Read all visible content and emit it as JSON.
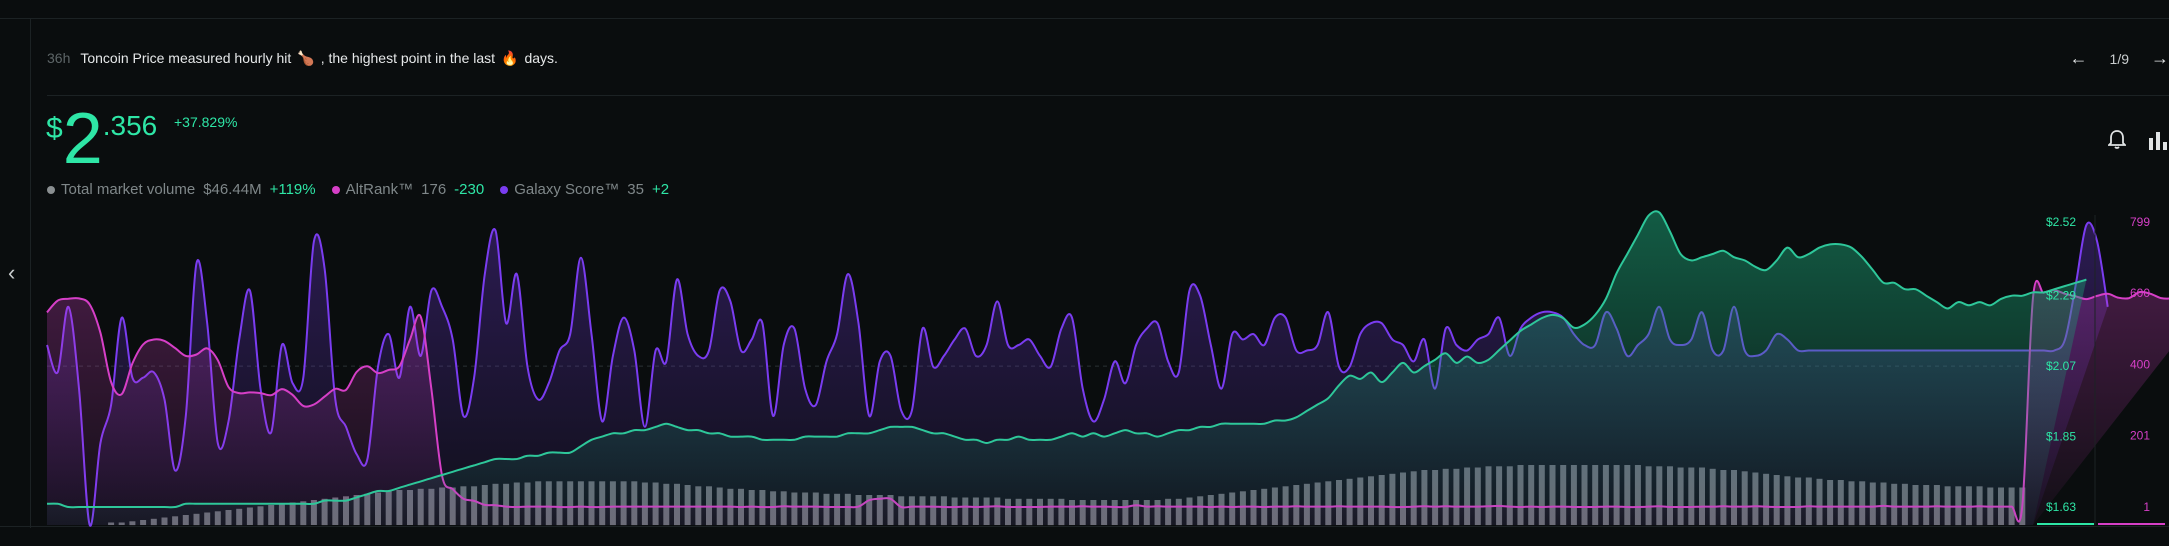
{
  "header": {
    "age": "36h",
    "text_before": "Toncoin Price measured hourly hit",
    "emoji1": "🍗",
    "text_middle": ", the highest point in the last",
    "emoji2": "🔥",
    "text_after": "days."
  },
  "nav": {
    "prev": "←",
    "page": "1/9",
    "next": "→"
  },
  "price": {
    "currency": "$",
    "whole": "2",
    "decimal": ".356",
    "change": "+37.829%"
  },
  "stats": [
    {
      "label": "Total market volume",
      "value": "$46.44M",
      "change": "+119%",
      "color": "#8a8f91"
    },
    {
      "label": "AltRank™",
      "value": "176",
      "change": "-230",
      "color": "#d63fc7"
    },
    {
      "label": "Galaxy Score™",
      "value": "35",
      "change": "+2",
      "color": "#7a3cf0"
    }
  ],
  "tools": {
    "alert_icon": "bell-icon",
    "chart_icon": "bar-chart-icon"
  },
  "colors": {
    "price": "#2ee6a6",
    "altrank": "#d63fc7",
    "galaxy": "#7a3cf0",
    "volume": "#6b6e6f"
  },
  "chart_data": {
    "type": "line",
    "x_hours": 187,
    "y_price_ticks": [
      "$2.52",
      "$2.29",
      "$2.07",
      "$1.85",
      "$1.63"
    ],
    "y_price_range": [
      1.63,
      2.52
    ],
    "y_altrank_ticks": [
      "799",
      "600",
      "400",
      "201",
      "1"
    ],
    "y_altrank_range": [
      1,
      799
    ],
    "series": [
      {
        "name": "Price",
        "values": [
          1.64,
          1.64,
          1.63,
          1.63,
          1.63,
          1.63,
          1.63,
          1.63,
          1.63,
          1.63,
          1.63,
          1.63,
          1.63,
          1.64,
          1.64,
          1.64,
          1.64,
          1.64,
          1.64,
          1.64,
          1.64,
          1.64,
          1.64,
          1.64,
          1.64,
          1.64,
          1.65,
          1.65,
          1.65,
          1.66,
          1.67,
          1.68,
          1.68,
          1.69,
          1.7,
          1.71,
          1.72,
          1.73,
          1.74,
          1.75,
          1.76,
          1.77,
          1.78,
          1.78,
          1.78,
          1.79,
          1.79,
          1.8,
          1.8,
          1.8,
          1.82,
          1.84,
          1.85,
          1.86,
          1.86,
          1.87,
          1.87,
          1.88,
          1.89,
          1.88,
          1.87,
          1.87,
          1.86,
          1.86,
          1.85,
          1.85,
          1.85,
          1.84,
          1.84,
          1.84,
          1.84,
          1.85,
          1.85,
          1.85,
          1.85,
          1.86,
          1.86,
          1.86,
          1.87,
          1.88,
          1.88,
          1.88,
          1.87,
          1.86,
          1.86,
          1.85,
          1.84,
          1.84,
          1.83,
          1.84,
          1.84,
          1.85,
          1.84,
          1.84,
          1.84,
          1.85,
          1.86,
          1.85,
          1.86,
          1.85,
          1.86,
          1.87,
          1.86,
          1.86,
          1.85,
          1.86,
          1.87,
          1.87,
          1.88,
          1.88,
          1.89,
          1.89,
          1.89,
          1.89,
          1.89,
          1.9,
          1.9,
          1.91,
          1.93,
          1.95,
          1.97,
          2.01,
          2.04,
          2.03,
          2.05,
          2.02,
          2.05,
          2.08,
          2.05,
          2.07,
          2.09,
          2.11,
          2.08,
          2.1,
          2.08,
          2.09,
          2.12,
          2.15,
          2.18,
          2.2,
          2.22,
          2.23,
          2.22,
          2.19,
          2.2,
          2.23,
          2.28,
          2.36,
          2.42,
          2.48,
          2.54,
          2.55,
          2.49,
          2.42,
          2.4,
          2.41,
          2.42,
          2.43,
          2.41,
          2.4,
          2.38,
          2.37,
          2.4,
          2.44,
          2.41,
          2.42,
          2.44,
          2.45,
          2.45,
          2.44,
          2.41,
          2.37,
          2.33,
          2.33,
          2.31,
          2.31,
          2.29,
          2.27,
          2.25,
          2.27,
          2.26,
          2.27,
          2.26,
          2.28,
          2.29,
          2.29,
          2.3,
          2.3,
          2.31,
          2.32,
          2.33,
          2.34
        ]
      },
      {
        "name": "AltRank™",
        "values": [
          546,
          579,
          584,
          585,
          568,
          489,
          351,
          317,
          403,
          456,
          470,
          466,
          446,
          424,
          428,
          445,
          412,
          337,
          320,
          322,
          320,
          314,
          331,
          315,
          284,
          288,
          310,
          332,
          329,
          379,
          395,
          376,
          385,
          395,
          470,
          534,
          331,
          88,
          51,
          24,
          18,
          7,
          6,
          2,
          1,
          2,
          2,
          2,
          1,
          1,
          2,
          1,
          1,
          2,
          2,
          2,
          2,
          2,
          2,
          2,
          2,
          2,
          2,
          2,
          2,
          1,
          2,
          1,
          1,
          3,
          2,
          2,
          2,
          1,
          1,
          1,
          2,
          20,
          24,
          24,
          1,
          2,
          2,
          2,
          1,
          1,
          2,
          1,
          2,
          3,
          1,
          1,
          1,
          1,
          2,
          2,
          2,
          3,
          2,
          2,
          1,
          1,
          6,
          2,
          3,
          2,
          2,
          2,
          2,
          1,
          2,
          1,
          2,
          2,
          1,
          2,
          2,
          3,
          2,
          2,
          2,
          3,
          2,
          2,
          2,
          2,
          1,
          1,
          2,
          3,
          2,
          3,
          2,
          2,
          2,
          3,
          4,
          2,
          1,
          2,
          1,
          2,
          2,
          1,
          1,
          1,
          2,
          2,
          1,
          1,
          2,
          3,
          1,
          1,
          1,
          2,
          2,
          3,
          2,
          2,
          3,
          2,
          1,
          1,
          1,
          3,
          2,
          2,
          2,
          2,
          2,
          2,
          4,
          2,
          2,
          2,
          2,
          3,
          2,
          2,
          2,
          3,
          2,
          2,
          2,
          4,
          587,
          601,
          608,
          598,
          591,
          583,
          592,
          598,
          587,
          586,
          603,
          598,
          586,
          586,
          599,
          596,
          596,
          600
        ]
      },
      {
        "name": "Galaxy Score™",
        "values": [
          53,
          48,
          60,
          45,
          20,
          35,
          42,
          58,
          47,
          47,
          48,
          43,
          30,
          40,
          68,
          57,
          35,
          39,
          54,
          63,
          45,
          37,
          53,
          46,
          47,
          72,
          67,
          43,
          38,
          33,
          32,
          49,
          55,
          47,
          60,
          51,
          63,
          60,
          54,
          40,
          47,
          66,
          74,
          57,
          66,
          49,
          43,
          46,
          52,
          55,
          69,
          55,
          39,
          51,
          58,
          52,
          38,
          52,
          50,
          65,
          55,
          51,
          52,
          63,
          61,
          52,
          54,
          57,
          40,
          53,
          56,
          45,
          42,
          50,
          55,
          66,
          57,
          40,
          50,
          51,
          41,
          41,
          56,
          49,
          51,
          54,
          56,
          51,
          53,
          61,
          53,
          53,
          54,
          51,
          49,
          56,
          58,
          45,
          39,
          43,
          50,
          46,
          53,
          56,
          57,
          50,
          48,
          63,
          62,
          53,
          45,
          55,
          54,
          55,
          53,
          58,
          58,
          52,
          52,
          53,
          59,
          49,
          49,
          55,
          57,
          57,
          54,
          53,
          50,
          54,
          45,
          56,
          53,
          52,
          54,
          55,
          58,
          51,
          56,
          58,
          59,
          59,
          58,
          55,
          53,
          53,
          59,
          56,
          51,
          53,
          55,
          60,
          54,
          53,
          54,
          59,
          52,
          52,
          60,
          52,
          51,
          52,
          55,
          54,
          52,
          52,
          52,
          52,
          52,
          52,
          52,
          52,
          52,
          52,
          52,
          52,
          52,
          52,
          52,
          52,
          52,
          52,
          52,
          52,
          52,
          52,
          52,
          52,
          52,
          54,
          64,
          75,
          72,
          60
        ]
      },
      {
        "name": "Total market volume",
        "values": [
          1,
          1,
          1,
          1,
          1,
          1,
          2,
          2,
          3,
          4,
          5,
          6,
          7,
          8,
          9,
          10,
          11,
          12,
          13,
          14,
          15,
          16,
          17,
          18,
          19,
          20,
          21,
          22,
          23,
          24,
          25,
          26,
          27,
          28,
          28,
          29,
          29,
          30,
          30,
          31,
          31,
          32,
          33,
          33,
          34,
          34,
          35,
          35,
          35,
          35,
          35,
          35,
          35,
          35,
          35,
          35,
          34,
          34,
          33,
          33,
          32,
          31,
          31,
          30,
          29,
          29,
          28,
          28,
          27,
          27,
          26,
          26,
          26,
          25,
          25,
          25,
          24,
          24,
          24,
          24,
          23,
          23,
          23,
          23,
          23,
          22,
          22,
          22,
          22,
          22,
          21,
          21,
          21,
          21,
          21,
          21,
          20,
          20,
          20,
          20,
          20,
          20,
          20,
          20,
          20,
          21,
          21,
          22,
          23,
          24,
          25,
          26,
          27,
          28,
          29,
          30,
          31,
          32,
          33,
          34,
          35,
          36,
          37,
          38,
          39,
          40,
          41,
          42,
          43,
          44,
          44,
          45,
          45,
          46,
          46,
          47,
          47,
          47,
          48,
          48,
          48,
          48,
          48,
          48,
          48,
          48,
          48,
          48,
          48,
          48,
          47,
          47,
          47,
          46,
          46,
          46,
          45,
          44,
          44,
          43,
          42,
          41,
          40,
          39,
          38,
          38,
          37,
          36,
          36,
          35,
          35,
          34,
          34,
          33,
          33,
          32,
          32,
          32,
          31,
          31,
          31,
          31,
          30,
          30,
          30,
          30
        ]
      }
    ]
  }
}
